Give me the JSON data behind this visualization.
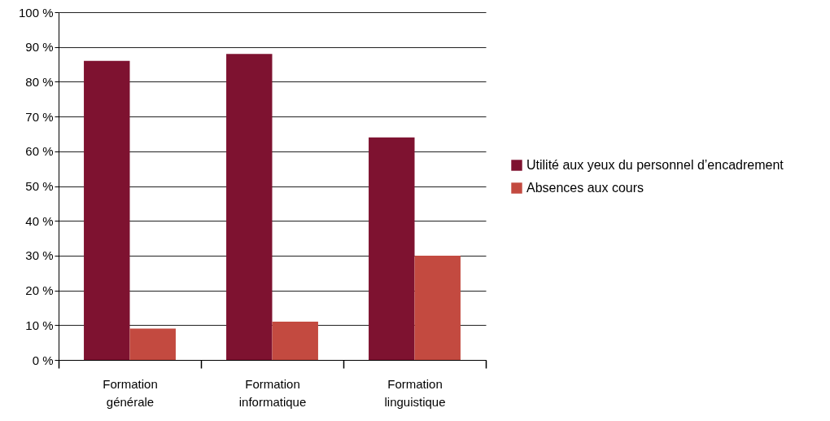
{
  "chart_data": {
    "type": "bar",
    "categories": [
      "Formation générale",
      "Formation informatique",
      "Formation linguistique"
    ],
    "series": [
      {
        "name": "Utilité aux yeux du personnel d’encadrement",
        "color": "#7e1230",
        "values": [
          86,
          88,
          64
        ]
      },
      {
        "name": "Absences aux cours",
        "color": "#c34a40",
        "values": [
          9,
          11,
          30
        ]
      }
    ],
    "ylim": [
      0,
      100
    ],
    "yticks": [
      {
        "value": 0,
        "label": "0 %"
      },
      {
        "value": 10,
        "label": "10 %"
      },
      {
        "value": 20,
        "label": "20 %"
      },
      {
        "value": 30,
        "label": "30 %"
      },
      {
        "value": 40,
        "label": "40 %"
      },
      {
        "value": 50,
        "label": "50 %"
      },
      {
        "value": 60,
        "label": "60 %"
      },
      {
        "value": 70,
        "label": "70 %"
      },
      {
        "value": 80,
        "label": "80 %"
      },
      {
        "value": 90,
        "label": "90 %"
      },
      {
        "value": 100,
        "label": "100 %"
      }
    ],
    "grid": "y",
    "legend": "right"
  }
}
